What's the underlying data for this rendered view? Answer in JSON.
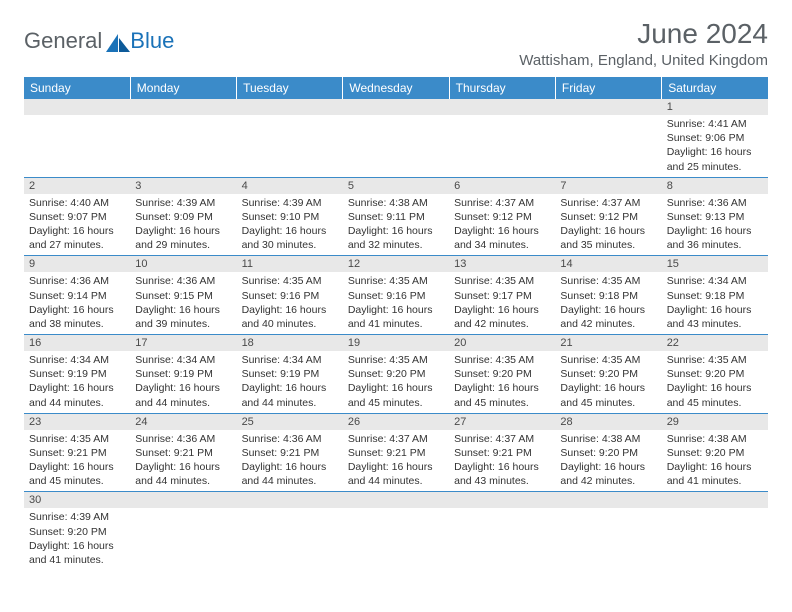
{
  "logo": {
    "text_general": "General",
    "text_blue": "Blue",
    "color_gray": "#5b6166",
    "color_blue": "#1a72b8"
  },
  "header": {
    "month_title": "June 2024",
    "location": "Wattisham, England, United Kingdom"
  },
  "colors": {
    "header_bg": "#3b8bc9",
    "header_text": "#ffffff",
    "daynum_bg": "#e8e8e8",
    "border": "#3b8bc9",
    "body_text": "#333333"
  },
  "weekdays": [
    "Sunday",
    "Monday",
    "Tuesday",
    "Wednesday",
    "Thursday",
    "Friday",
    "Saturday"
  ],
  "weeks": [
    {
      "nums": [
        "",
        "",
        "",
        "",
        "",
        "",
        "1"
      ],
      "data": [
        null,
        null,
        null,
        null,
        null,
        null,
        {
          "sunrise": "Sunrise: 4:41 AM",
          "sunset": "Sunset: 9:06 PM",
          "day1": "Daylight: 16 hours",
          "day2": "and 25 minutes."
        }
      ]
    },
    {
      "nums": [
        "2",
        "3",
        "4",
        "5",
        "6",
        "7",
        "8"
      ],
      "data": [
        {
          "sunrise": "Sunrise: 4:40 AM",
          "sunset": "Sunset: 9:07 PM",
          "day1": "Daylight: 16 hours",
          "day2": "and 27 minutes."
        },
        {
          "sunrise": "Sunrise: 4:39 AM",
          "sunset": "Sunset: 9:09 PM",
          "day1": "Daylight: 16 hours",
          "day2": "and 29 minutes."
        },
        {
          "sunrise": "Sunrise: 4:39 AM",
          "sunset": "Sunset: 9:10 PM",
          "day1": "Daylight: 16 hours",
          "day2": "and 30 minutes."
        },
        {
          "sunrise": "Sunrise: 4:38 AM",
          "sunset": "Sunset: 9:11 PM",
          "day1": "Daylight: 16 hours",
          "day2": "and 32 minutes."
        },
        {
          "sunrise": "Sunrise: 4:37 AM",
          "sunset": "Sunset: 9:12 PM",
          "day1": "Daylight: 16 hours",
          "day2": "and 34 minutes."
        },
        {
          "sunrise": "Sunrise: 4:37 AM",
          "sunset": "Sunset: 9:12 PM",
          "day1": "Daylight: 16 hours",
          "day2": "and 35 minutes."
        },
        {
          "sunrise": "Sunrise: 4:36 AM",
          "sunset": "Sunset: 9:13 PM",
          "day1": "Daylight: 16 hours",
          "day2": "and 36 minutes."
        }
      ]
    },
    {
      "nums": [
        "9",
        "10",
        "11",
        "12",
        "13",
        "14",
        "15"
      ],
      "data": [
        {
          "sunrise": "Sunrise: 4:36 AM",
          "sunset": "Sunset: 9:14 PM",
          "day1": "Daylight: 16 hours",
          "day2": "and 38 minutes."
        },
        {
          "sunrise": "Sunrise: 4:36 AM",
          "sunset": "Sunset: 9:15 PM",
          "day1": "Daylight: 16 hours",
          "day2": "and 39 minutes."
        },
        {
          "sunrise": "Sunrise: 4:35 AM",
          "sunset": "Sunset: 9:16 PM",
          "day1": "Daylight: 16 hours",
          "day2": "and 40 minutes."
        },
        {
          "sunrise": "Sunrise: 4:35 AM",
          "sunset": "Sunset: 9:16 PM",
          "day1": "Daylight: 16 hours",
          "day2": "and 41 minutes."
        },
        {
          "sunrise": "Sunrise: 4:35 AM",
          "sunset": "Sunset: 9:17 PM",
          "day1": "Daylight: 16 hours",
          "day2": "and 42 minutes."
        },
        {
          "sunrise": "Sunrise: 4:35 AM",
          "sunset": "Sunset: 9:18 PM",
          "day1": "Daylight: 16 hours",
          "day2": "and 42 minutes."
        },
        {
          "sunrise": "Sunrise: 4:34 AM",
          "sunset": "Sunset: 9:18 PM",
          "day1": "Daylight: 16 hours",
          "day2": "and 43 minutes."
        }
      ]
    },
    {
      "nums": [
        "16",
        "17",
        "18",
        "19",
        "20",
        "21",
        "22"
      ],
      "data": [
        {
          "sunrise": "Sunrise: 4:34 AM",
          "sunset": "Sunset: 9:19 PM",
          "day1": "Daylight: 16 hours",
          "day2": "and 44 minutes."
        },
        {
          "sunrise": "Sunrise: 4:34 AM",
          "sunset": "Sunset: 9:19 PM",
          "day1": "Daylight: 16 hours",
          "day2": "and 44 minutes."
        },
        {
          "sunrise": "Sunrise: 4:34 AM",
          "sunset": "Sunset: 9:19 PM",
          "day1": "Daylight: 16 hours",
          "day2": "and 44 minutes."
        },
        {
          "sunrise": "Sunrise: 4:35 AM",
          "sunset": "Sunset: 9:20 PM",
          "day1": "Daylight: 16 hours",
          "day2": "and 45 minutes."
        },
        {
          "sunrise": "Sunrise: 4:35 AM",
          "sunset": "Sunset: 9:20 PM",
          "day1": "Daylight: 16 hours",
          "day2": "and 45 minutes."
        },
        {
          "sunrise": "Sunrise: 4:35 AM",
          "sunset": "Sunset: 9:20 PM",
          "day1": "Daylight: 16 hours",
          "day2": "and 45 minutes."
        },
        {
          "sunrise": "Sunrise: 4:35 AM",
          "sunset": "Sunset: 9:20 PM",
          "day1": "Daylight: 16 hours",
          "day2": "and 45 minutes."
        }
      ]
    },
    {
      "nums": [
        "23",
        "24",
        "25",
        "26",
        "27",
        "28",
        "29"
      ],
      "data": [
        {
          "sunrise": "Sunrise: 4:35 AM",
          "sunset": "Sunset: 9:21 PM",
          "day1": "Daylight: 16 hours",
          "day2": "and 45 minutes."
        },
        {
          "sunrise": "Sunrise: 4:36 AM",
          "sunset": "Sunset: 9:21 PM",
          "day1": "Daylight: 16 hours",
          "day2": "and 44 minutes."
        },
        {
          "sunrise": "Sunrise: 4:36 AM",
          "sunset": "Sunset: 9:21 PM",
          "day1": "Daylight: 16 hours",
          "day2": "and 44 minutes."
        },
        {
          "sunrise": "Sunrise: 4:37 AM",
          "sunset": "Sunset: 9:21 PM",
          "day1": "Daylight: 16 hours",
          "day2": "and 44 minutes."
        },
        {
          "sunrise": "Sunrise: 4:37 AM",
          "sunset": "Sunset: 9:21 PM",
          "day1": "Daylight: 16 hours",
          "day2": "and 43 minutes."
        },
        {
          "sunrise": "Sunrise: 4:38 AM",
          "sunset": "Sunset: 9:20 PM",
          "day1": "Daylight: 16 hours",
          "day2": "and 42 minutes."
        },
        {
          "sunrise": "Sunrise: 4:38 AM",
          "sunset": "Sunset: 9:20 PM",
          "day1": "Daylight: 16 hours",
          "day2": "and 41 minutes."
        }
      ]
    },
    {
      "nums": [
        "30",
        "",
        "",
        "",
        "",
        "",
        ""
      ],
      "data": [
        {
          "sunrise": "Sunrise: 4:39 AM",
          "sunset": "Sunset: 9:20 PM",
          "day1": "Daylight: 16 hours",
          "day2": "and 41 minutes."
        },
        null,
        null,
        null,
        null,
        null,
        null
      ]
    }
  ]
}
